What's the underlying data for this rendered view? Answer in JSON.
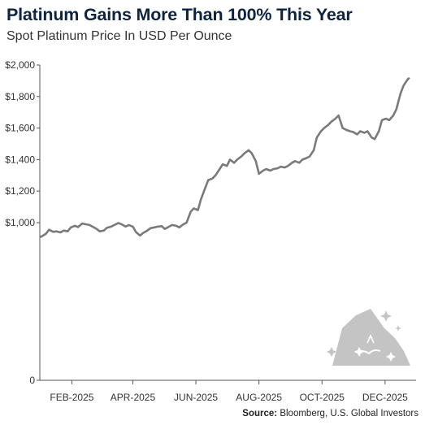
{
  "header": {
    "title": "Platinum Gains More Than 100% This Year",
    "subtitle": "Spot Platinum Price In USD Per Ounce"
  },
  "footer": {
    "source_label": "Source:",
    "source_text": "Bloomberg, U.S. Global Investors"
  },
  "colors": {
    "line": "#7a7a7a",
    "title": "#0c2440",
    "axis": "#555555",
    "logo": "#c4c4c4"
  },
  "logo_icon": "mountain-sparkle-icon",
  "chart_data": {
    "type": "line",
    "title": "Platinum Gains More Than 100% This Year",
    "subtitle": "Spot Platinum Price In USD Per Ounce",
    "ylabel": "",
    "xlabel": "",
    "grid": false,
    "ylim": [
      0,
      2000
    ],
    "y_ticks": [
      {
        "value": 0,
        "label": "0"
      },
      {
        "value": 1000,
        "label": "$1,000"
      },
      {
        "value": 1200,
        "label": "$1,200"
      },
      {
        "value": 1400,
        "label": "$1,400"
      },
      {
        "value": 1600,
        "label": "$1,600"
      },
      {
        "value": 1800,
        "label": "$1,800"
      },
      {
        "value": 2000,
        "label": "$2,000"
      }
    ],
    "xlim": [
      "2025-01-01",
      "2025-12-31"
    ],
    "x_ticks": [
      {
        "date": "2025-02-01",
        "label": "FEB-2025"
      },
      {
        "date": "2025-04-01",
        "label": "APR-2025"
      },
      {
        "date": "2025-06-01",
        "label": "JUN-2025"
      },
      {
        "date": "2025-08-01",
        "label": "AUG-2025"
      },
      {
        "date": "2025-10-01",
        "label": "OCT-2025"
      },
      {
        "date": "2025-12-01",
        "label": "DEC-2025"
      }
    ],
    "series": [
      {
        "name": "",
        "points": [
          [
            "2025-01-02",
            910
          ],
          [
            "2025-01-07",
            930
          ],
          [
            "2025-01-10",
            955
          ],
          [
            "2025-01-14",
            942
          ],
          [
            "2025-01-17",
            945
          ],
          [
            "2025-01-21",
            938
          ],
          [
            "2025-01-24",
            950
          ],
          [
            "2025-01-28",
            945
          ],
          [
            "2025-01-31",
            970
          ],
          [
            "2025-02-04",
            980
          ],
          [
            "2025-02-07",
            972
          ],
          [
            "2025-02-11",
            995
          ],
          [
            "2025-02-14",
            990
          ],
          [
            "2025-02-18",
            985
          ],
          [
            "2025-02-21",
            975
          ],
          [
            "2025-02-25",
            960
          ],
          [
            "2025-02-28",
            945
          ],
          [
            "2025-03-04",
            950
          ],
          [
            "2025-03-07",
            968
          ],
          [
            "2025-03-11",
            975
          ],
          [
            "2025-03-14",
            985
          ],
          [
            "2025-03-18",
            998
          ],
          [
            "2025-03-21",
            990
          ],
          [
            "2025-03-25",
            975
          ],
          [
            "2025-03-28",
            985
          ],
          [
            "2025-04-01",
            975
          ],
          [
            "2025-04-04",
            940
          ],
          [
            "2025-04-08",
            918
          ],
          [
            "2025-04-11",
            935
          ],
          [
            "2025-04-15",
            950
          ],
          [
            "2025-04-18",
            965
          ],
          [
            "2025-04-22",
            970
          ],
          [
            "2025-04-25",
            975
          ],
          [
            "2025-04-29",
            978
          ],
          [
            "2025-05-02",
            960
          ],
          [
            "2025-05-06",
            975
          ],
          [
            "2025-05-09",
            985
          ],
          [
            "2025-05-13",
            980
          ],
          [
            "2025-05-16",
            970
          ],
          [
            "2025-05-20",
            990
          ],
          [
            "2025-05-23",
            1000
          ],
          [
            "2025-05-27",
            1070
          ],
          [
            "2025-05-30",
            1090
          ],
          [
            "2025-06-03",
            1080
          ],
          [
            "2025-06-06",
            1150
          ],
          [
            "2025-06-10",
            1220
          ],
          [
            "2025-06-13",
            1270
          ],
          [
            "2025-06-17",
            1280
          ],
          [
            "2025-06-20",
            1300
          ],
          [
            "2025-06-24",
            1340
          ],
          [
            "2025-06-27",
            1370
          ],
          [
            "2025-07-01",
            1360
          ],
          [
            "2025-07-04",
            1400
          ],
          [
            "2025-07-08",
            1380
          ],
          [
            "2025-07-11",
            1400
          ],
          [
            "2025-07-15",
            1420
          ],
          [
            "2025-07-18",
            1440
          ],
          [
            "2025-07-22",
            1460
          ],
          [
            "2025-07-25",
            1440
          ],
          [
            "2025-07-29",
            1390
          ],
          [
            "2025-08-01",
            1310
          ],
          [
            "2025-08-05",
            1330
          ],
          [
            "2025-08-08",
            1340
          ],
          [
            "2025-08-12",
            1330
          ],
          [
            "2025-08-15",
            1340
          ],
          [
            "2025-08-19",
            1345
          ],
          [
            "2025-08-22",
            1355
          ],
          [
            "2025-08-26",
            1350
          ],
          [
            "2025-08-29",
            1360
          ],
          [
            "2025-09-02",
            1380
          ],
          [
            "2025-09-05",
            1390
          ],
          [
            "2025-09-09",
            1380
          ],
          [
            "2025-09-12",
            1400
          ],
          [
            "2025-09-16",
            1410
          ],
          [
            "2025-09-19",
            1420
          ],
          [
            "2025-09-23",
            1460
          ],
          [
            "2025-09-26",
            1540
          ],
          [
            "2025-09-30",
            1580
          ],
          [
            "2025-10-03",
            1600
          ],
          [
            "2025-10-07",
            1620
          ],
          [
            "2025-10-10",
            1640
          ],
          [
            "2025-10-14",
            1660
          ],
          [
            "2025-10-17",
            1680
          ],
          [
            "2025-10-21",
            1600
          ],
          [
            "2025-10-24",
            1590
          ],
          [
            "2025-10-28",
            1580
          ],
          [
            "2025-10-31",
            1575
          ],
          [
            "2025-11-04",
            1560
          ],
          [
            "2025-11-07",
            1580
          ],
          [
            "2025-11-11",
            1570
          ],
          [
            "2025-11-14",
            1580
          ],
          [
            "2025-11-18",
            1540
          ],
          [
            "2025-11-21",
            1530
          ],
          [
            "2025-11-25",
            1580
          ],
          [
            "2025-11-28",
            1650
          ],
          [
            "2025-12-02",
            1660
          ],
          [
            "2025-12-05",
            1650
          ],
          [
            "2025-12-09",
            1680
          ],
          [
            "2025-12-12",
            1720
          ],
          [
            "2025-12-16",
            1820
          ],
          [
            "2025-12-19",
            1870
          ],
          [
            "2025-12-23",
            1910
          ],
          [
            "2025-12-24",
            1915
          ]
        ]
      }
    ]
  }
}
